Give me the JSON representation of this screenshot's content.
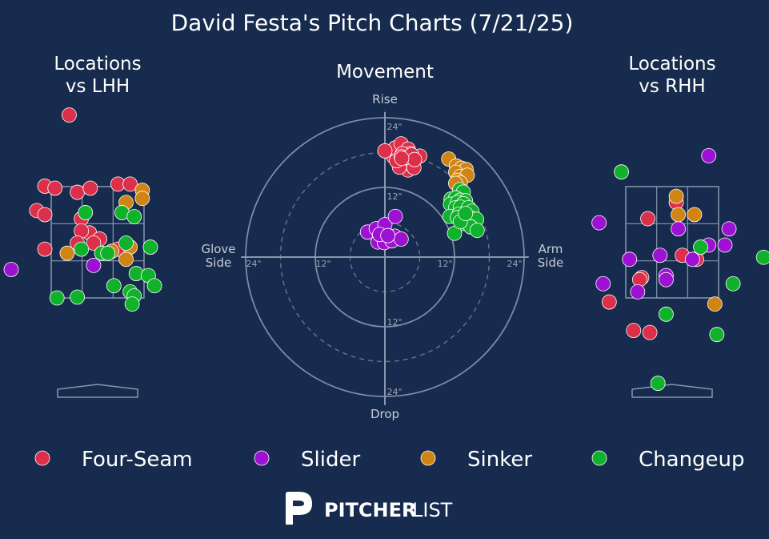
{
  "title": "David Festa's Pitch Charts (7/21/25)",
  "brand": {
    "pitcher": "PITCHER",
    "list": "LIST"
  },
  "colors": {
    "background": "#162b4d",
    "Four-Seam": "#dc2f4a",
    "Slider": "#9d12d2",
    "Sinker": "#d08414",
    "Changeup": "#0fb22a"
  },
  "chart_data": [
    {
      "type": "scatter",
      "title": "Locations\nvs LHH",
      "title_lines": [
        "Locations",
        "vs LHH"
      ],
      "grid": true,
      "series": [
        {
          "name": "Four-Seam",
          "points": [
            [
              -0.7,
              4.5
            ],
            [
              -1.3,
              2.75
            ],
            [
              -1.05,
              2.7
            ],
            [
              -1.5,
              2.15
            ],
            [
              -1.3,
              2.05
            ],
            [
              -0.5,
              2.6
            ],
            [
              -0.18,
              2.7
            ],
            [
              0.5,
              2.8
            ],
            [
              0.8,
              2.8
            ],
            [
              -1.3,
              1.2
            ],
            [
              -0.4,
              1.95
            ],
            [
              -0.2,
              1.6
            ],
            [
              0.05,
              1.45
            ],
            [
              -0.4,
              1.65
            ],
            [
              -0.5,
              1.35
            ],
            [
              -0.1,
              1.35
            ],
            [
              0.5,
              1.2
            ]
          ]
        },
        {
          "name": "Slider",
          "points": [
            [
              -2.3,
              0.7
            ],
            [
              -0.1,
              0.8
            ]
          ]
        },
        {
          "name": "Sinker",
          "points": [
            [
              1.1,
              2.65
            ],
            [
              1.1,
              2.45
            ],
            [
              0.7,
              2.35
            ],
            [
              0.8,
              1.25
            ],
            [
              0.7,
              0.95
            ],
            [
              -0.75,
              1.1
            ],
            [
              0.35,
              1.15
            ]
          ]
        },
        {
          "name": "Changeup",
          "points": [
            [
              -0.3,
              2.1
            ],
            [
              0.6,
              2.1
            ],
            [
              0.9,
              2.0
            ],
            [
              0.7,
              1.35
            ],
            [
              1.3,
              1.25
            ],
            [
              -0.4,
              1.2
            ],
            [
              0.1,
              1.1
            ],
            [
              0.25,
              1.1
            ],
            [
              0.95,
              0.6
            ],
            [
              1.25,
              0.55
            ],
            [
              0.4,
              0.3
            ],
            [
              1.4,
              0.3
            ],
            [
              0.8,
              0.15
            ],
            [
              0.9,
              0.05
            ],
            [
              -1.0,
              0.0
            ],
            [
              -0.5,
              0.02
            ],
            [
              0.85,
              -0.15
            ]
          ]
        }
      ]
    },
    {
      "type": "scatter",
      "title": "Movement",
      "axis_labels": {
        "top": "Rise",
        "bottom": "Drop",
        "left": "Glove\nSide",
        "right": "Arm\nSide"
      },
      "x_unit": "inches horizontal break",
      "y_unit": "inches induced vertical break",
      "rings": [
        12,
        24
      ],
      "ring_labels": [
        "12\"",
        "24\""
      ],
      "series": [
        {
          "name": "Four-Seam",
          "points": [
            [
              2,
              17
            ],
            [
              2.5,
              16
            ],
            [
              3,
              16
            ],
            [
              4,
              15
            ],
            [
              3.8,
              16.2
            ],
            [
              2.8,
              16.8
            ],
            [
              5,
              15.4
            ],
            [
              2.5,
              15.5
            ],
            [
              1.5,
              17.3
            ],
            [
              2.2,
              18
            ],
            [
              3,
              18.5
            ],
            [
              1.8,
              18.8
            ],
            [
              2.8,
              19.5
            ],
            [
              4,
              18.6
            ],
            [
              4.4,
              17.8
            ],
            [
              6,
              17.4
            ],
            [
              0,
              18.3
            ],
            [
              2,
              16.6
            ],
            [
              3,
              17.8
            ],
            [
              2.8,
              17.3
            ],
            [
              3.5,
              17.1
            ],
            [
              4.6,
              17.6
            ],
            [
              5.1,
              16.8
            ],
            [
              2.9,
              17
            ]
          ]
        },
        {
          "name": "Slider",
          "points": [
            [
              -3,
              4.3
            ],
            [
              -1.5,
              4.9
            ],
            [
              0,
              5.6
            ],
            [
              1.8,
              7
            ],
            [
              -1,
              3.2
            ],
            [
              -1.2,
              2.6
            ],
            [
              0.3,
              3
            ],
            [
              1.7,
              3.6
            ],
            [
              0,
              3.1
            ],
            [
              -0.1,
              2.5
            ],
            [
              1.2,
              2.8
            ],
            [
              2.8,
              3.1
            ],
            [
              -0.9,
              3.9
            ],
            [
              0.5,
              3.7
            ]
          ]
        },
        {
          "name": "Sinker",
          "points": [
            [
              11,
              16.9
            ],
            [
              12.3,
              15.7
            ],
            [
              13.2,
              15.3
            ],
            [
              14,
              15.1
            ],
            [
              12.2,
              14.6
            ],
            [
              13,
              13.9
            ],
            [
              14.2,
              14.1
            ],
            [
              12.5,
              13.2
            ],
            [
              13,
              12.8
            ],
            [
              12.2,
              12.7
            ]
          ]
        },
        {
          "name": "Changeup",
          "points": [
            [
              12.9,
              11.6
            ],
            [
              13.5,
              11.2
            ],
            [
              11.4,
              10
            ],
            [
              12.2,
              10.2
            ],
            [
              13,
              9.8
            ],
            [
              13.9,
              9.7
            ],
            [
              11.3,
              9.1
            ],
            [
              12.5,
              9.4
            ],
            [
              13.5,
              9.2
            ],
            [
              12.2,
              8.5
            ],
            [
              13,
              8.6
            ],
            [
              14.4,
              8.5
            ],
            [
              15,
              7.9
            ],
            [
              11.2,
              7
            ],
            [
              12.8,
              7.4
            ],
            [
              13.8,
              7.3
            ],
            [
              12.5,
              6.8
            ],
            [
              13.8,
              6.4
            ],
            [
              14.9,
              6.7
            ],
            [
              15.8,
              6.5
            ],
            [
              13.5,
              5.8
            ],
            [
              14.8,
              5.2
            ],
            [
              15.9,
              4.6
            ],
            [
              12,
              4.1
            ],
            [
              13,
              6.1
            ],
            [
              13.9,
              7.5
            ]
          ]
        }
      ]
    },
    {
      "type": "scatter",
      "title": "Locations\nvs RHH",
      "title_lines": [
        "Locations",
        "vs RHH"
      ],
      "grid": true,
      "series": [
        {
          "name": "Four-Seam",
          "points": [
            [
              0.1,
              2.35
            ],
            [
              -0.6,
              1.95
            ],
            [
              0.25,
              1.05
            ],
            [
              0.6,
              0.95
            ],
            [
              -0.75,
              0.5
            ],
            [
              -0.8,
              0.45
            ],
            [
              -1.55,
              -0.1
            ],
            [
              -0.95,
              -0.8
            ],
            [
              -0.55,
              -0.85
            ]
          ]
        },
        {
          "name": "Slider",
          "points": [
            [
              0.9,
              3.5
            ],
            [
              -1.8,
              1.85
            ],
            [
              1.4,
              1.7
            ],
            [
              0.15,
              1.7
            ],
            [
              0.9,
              1.3
            ],
            [
              1.3,
              1.3
            ],
            [
              -1.05,
              0.95
            ],
            [
              -0.3,
              1.05
            ],
            [
              0.5,
              0.95
            ],
            [
              -0.15,
              0.55
            ],
            [
              -0.15,
              0.45
            ],
            [
              -1.7,
              0.35
            ],
            [
              -0.85,
              0.15
            ]
          ]
        },
        {
          "name": "Sinker",
          "points": [
            [
              0.1,
              2.5
            ],
            [
              0.15,
              2.05
            ],
            [
              0.55,
              2.05
            ],
            [
              1.05,
              -0.15
            ]
          ]
        },
        {
          "name": "Changeup",
          "points": [
            [
              -1.25,
              3.1
            ],
            [
              0.7,
              1.25
            ],
            [
              2.25,
              1.0
            ],
            [
              1.5,
              0.35
            ],
            [
              -0.15,
              -0.4
            ],
            [
              1.1,
              -0.9
            ],
            [
              -0.35,
              -2.1
            ]
          ]
        }
      ]
    }
  ],
  "legend": [
    {
      "label": "Four-Seam",
      "color": "#dc2f4a"
    },
    {
      "label": "Slider",
      "color": "#9d12d2"
    },
    {
      "label": "Sinker",
      "color": "#d08414"
    },
    {
      "label": "Changeup",
      "color": "#0fb22a"
    }
  ]
}
